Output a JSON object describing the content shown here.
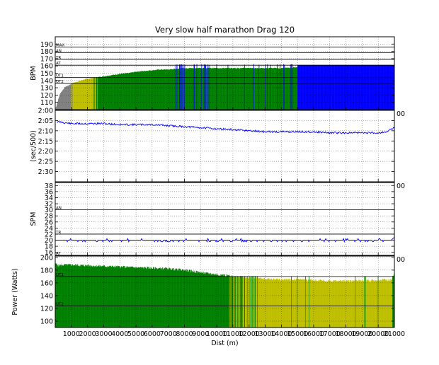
{
  "chart_data": [
    {
      "type": "area",
      "title": "Very slow half marathon Drag 120",
      "ylabel": "BPM",
      "xlim": [
        0,
        21000
      ],
      "ylim": [
        100,
        200
      ],
      "yticks": [
        110,
        120,
        130,
        140,
        150,
        160,
        170,
        180,
        190
      ],
      "grid": true,
      "reference_lines": [
        {
          "label": "MAX",
          "y": 186
        },
        {
          "label": "AN",
          "y": 178
        },
        {
          "label": "TR",
          "y": 169
        },
        {
          "label": "AT",
          "y": 161
        },
        {
          "label": "UT1",
          "y": 144
        },
        {
          "label": "UT2",
          "y": 136
        }
      ],
      "series": [
        {
          "x": [
            0,
            300,
            600,
            900,
            1000,
            1300,
            1600,
            1900,
            2200,
            2500,
            2800,
            3100,
            3400,
            3700,
            4000,
            4500,
            5000,
            5500,
            6000,
            6500,
            7000,
            7500,
            8000,
            9000,
            10000,
            11000,
            12000,
            13000,
            14000,
            15000,
            16000,
            17000,
            18000,
            19000,
            20000,
            21000
          ],
          "values": [
            100,
            122,
            131,
            134,
            136,
            138,
            140,
            142,
            143,
            144,
            145,
            146,
            147,
            148,
            149,
            150,
            152,
            153,
            154,
            155,
            155,
            156,
            157,
            157,
            157,
            157,
            157,
            157,
            157,
            158,
            158,
            158,
            158,
            159,
            159,
            159
          ]
        }
      ],
      "zone_colors": {
        "below": "#808080",
        "UT2": "#bfbf00",
        "UT1": "#008000",
        "AT": "#0000ff"
      }
    },
    {
      "type": "line",
      "ylabel": "(sec/500)",
      "xlim": [
        0,
        21000
      ],
      "ylim": [
        155,
        120
      ],
      "yticks": [
        "2:00",
        "2:05",
        "2:10",
        "2:15",
        "2:20",
        "2:25",
        "2:30"
      ],
      "grid": true,
      "series": [
        {
          "x": [
            100,
            500,
            1000,
            2000,
            3000,
            4000,
            5000,
            6000,
            7000,
            8000,
            9000,
            10000,
            11000,
            12000,
            13000,
            14000,
            15000,
            16000,
            17000,
            18000,
            19000,
            20000,
            20500,
            21000
          ],
          "values": [
            125.5,
            126,
            126.5,
            126.5,
            126.5,
            127,
            127,
            127,
            127.5,
            128,
            128.5,
            129,
            129.5,
            130,
            130.5,
            130.5,
            130.5,
            130.5,
            131,
            131,
            131,
            131,
            130.5,
            128.5
          ],
          "color": "#0000ff"
        }
      ]
    },
    {
      "type": "line",
      "ylabel": "SPM",
      "xlim": [
        0,
        21000
      ],
      "ylim": [
        15,
        39
      ],
      "yticks": [
        16,
        18,
        20,
        22,
        24,
        26,
        28,
        30,
        32,
        34,
        36,
        38
      ],
      "grid": true,
      "reference_lines": [
        {
          "label": "AN",
          "y": 30
        },
        {
          "label": "TR",
          "y": 22
        },
        {
          "label": "AT",
          "y": 15
        }
      ],
      "series": [
        {
          "x": [
            0,
            21000
          ],
          "values": [
            20,
            20
          ],
          "color": "#0000ff"
        }
      ]
    },
    {
      "type": "area",
      "ylabel": "Power (Watts)",
      "xlabel": "Dist (m)",
      "xlim": [
        0,
        21000
      ],
      "ylim": [
        90,
        202
      ],
      "yticks": [
        100,
        120,
        140,
        160,
        180,
        200
      ],
      "xticks": [
        1000,
        2000,
        3000,
        4000,
        5000,
        6000,
        7000,
        8000,
        9000,
        10000,
        11000,
        12000,
        13000,
        14000,
        15000,
        16000,
        17000,
        18000,
        19000,
        20000,
        21000
      ],
      "grid": true,
      "reference_lines": [
        {
          "label": "UT1",
          "y": 170
        },
        {
          "label": "UT2",
          "y": 124
        }
      ],
      "series": [
        {
          "x": [
            0,
            200,
            500,
            1000,
            2000,
            3000,
            4000,
            5000,
            6000,
            7000,
            8000,
            9000,
            10000,
            10500,
            11000,
            11500,
            12000,
            12500,
            13000,
            14000,
            15000,
            16000,
            17000,
            18000,
            19000,
            20000,
            20800,
            21000
          ],
          "values": [
            190,
            187,
            188,
            188,
            187,
            186,
            185,
            184,
            183,
            182,
            180,
            176,
            173,
            172,
            170,
            169,
            168,
            167,
            166,
            165,
            165,
            164,
            163,
            163,
            163,
            164,
            165,
            175
          ]
        }
      ],
      "zone_colors": {
        "UT1": "#008000",
        "UT2": "#bfbf00"
      }
    }
  ]
}
